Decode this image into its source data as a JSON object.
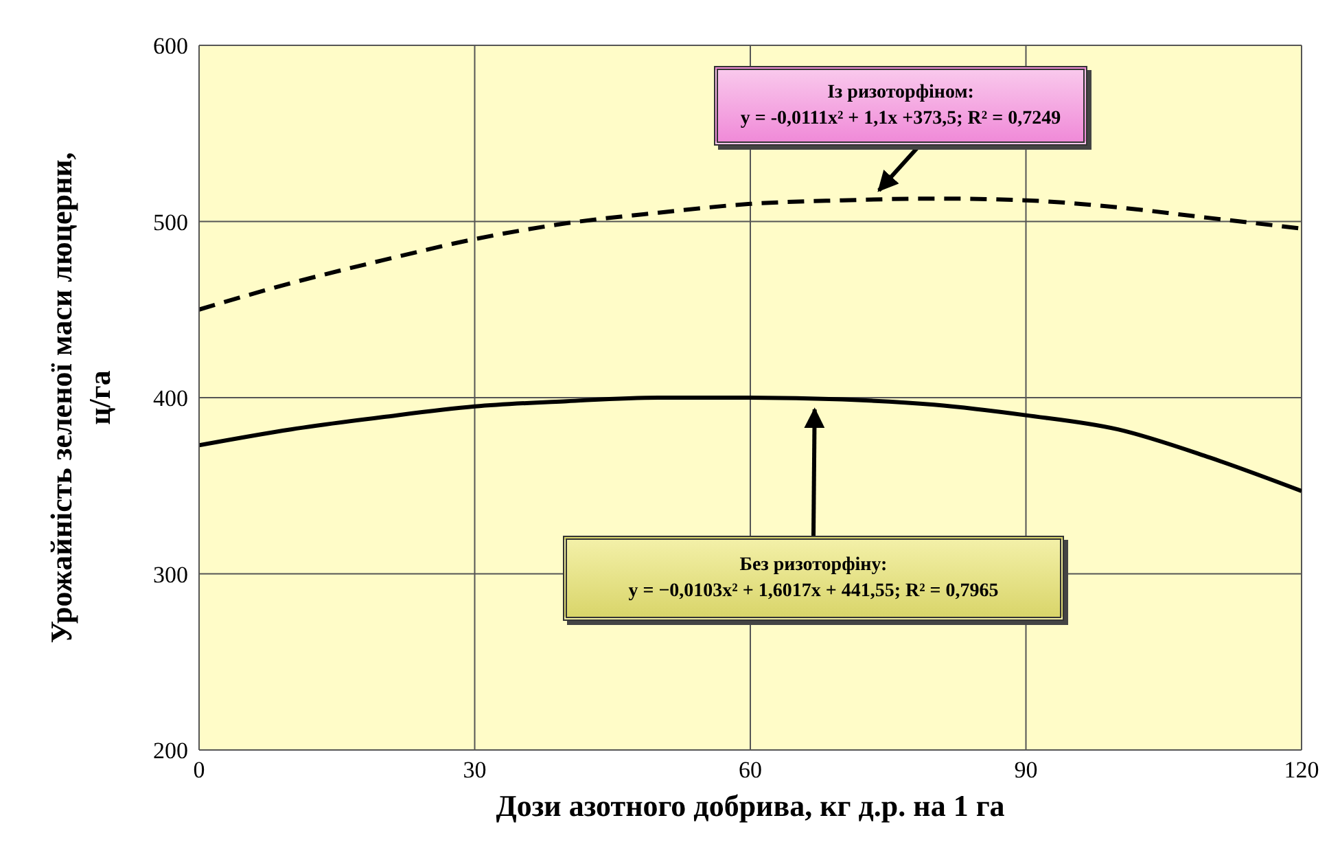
{
  "chart_data": {
    "type": "line",
    "xlabel": "Дози азотного добрива, кг д.р. на 1 га",
    "ylabel": "Урожайність зеленої маси люцерни, ц/га",
    "x": [
      0,
      10,
      20,
      30,
      40,
      50,
      60,
      70,
      80,
      90,
      100,
      110,
      120
    ],
    "series": [
      {
        "color": "#000000",
        "line_style": "dashed",
        "values": [
          450,
          465,
          478,
          490,
          499,
          505,
          510,
          512,
          513,
          512,
          508,
          502,
          496
        ]
      },
      {
        "color": "#000000",
        "line_style": "solid",
        "values": [
          373,
          382,
          389,
          395,
          398,
          400,
          400,
          399,
          396,
          390,
          382,
          366,
          347
        ]
      }
    ],
    "xlim": [
      0,
      120
    ],
    "xticks": [
      0,
      30,
      60,
      90,
      120
    ],
    "ylim": [
      200,
      600
    ],
    "yticks": [
      200,
      300,
      400,
      500,
      600
    ],
    "grid": true,
    "legend": false,
    "marker": "none",
    "annotations": [
      {
        "text": "Із ризоторфіном:\ny = -0,0111x² + 1,1x +373,5; R² = 0,7249",
        "x": 74,
        "y": 513
      },
      {
        "text": "Без ризоторфіну:\ny = −0,0103x² + 1,6017x + 441,55; R² = 0,7965",
        "x": 67,
        "y": 398
      }
    ]
  }
}
